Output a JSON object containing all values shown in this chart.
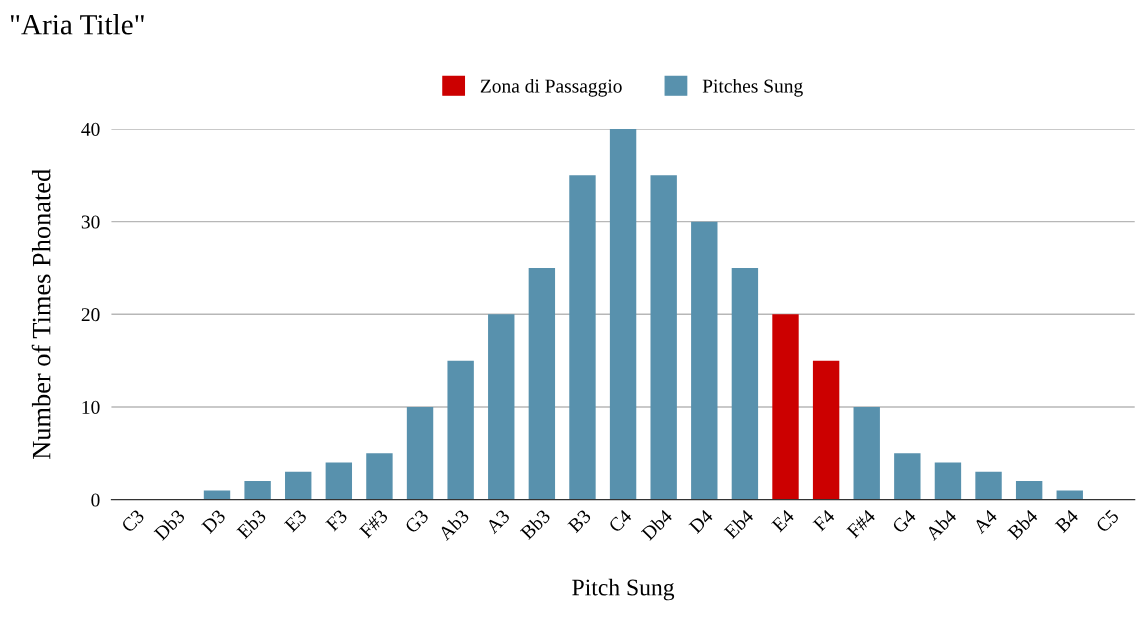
{
  "chart_data": {
    "type": "bar",
    "title": "\"Aria Title\"",
    "xlabel": "Pitch Sung",
    "ylabel": "Number of Times Phonated",
    "categories": [
      "C3",
      "Db3",
      "D3",
      "Eb3",
      "E3",
      "F3",
      "F#3",
      "G3",
      "Ab3",
      "A3",
      "Bb3",
      "B3",
      "C4",
      "Db4",
      "D4",
      "Eb4",
      "E4",
      "F4",
      "F#4",
      "G4",
      "Ab4",
      "A4",
      "Bb4",
      "B4",
      "C5"
    ],
    "stacked": true,
    "series": [
      {
        "name": "Zona di Passaggio",
        "color": "#cc0000",
        "values": [
          null,
          null,
          null,
          null,
          null,
          null,
          null,
          null,
          null,
          null,
          null,
          null,
          null,
          null,
          null,
          null,
          20,
          15,
          null,
          null,
          null,
          null,
          null,
          null,
          null
        ]
      },
      {
        "name": "Pitches Sung",
        "color": "#5891ad",
        "values": [
          0,
          0,
          1,
          2,
          3,
          4,
          5,
          10,
          15,
          20,
          25,
          35,
          40,
          35,
          30,
          25,
          null,
          null,
          10,
          5,
          4,
          3,
          2,
          1,
          0
        ]
      }
    ],
    "ylim": [
      0,
      40
    ],
    "yticks": [
      0,
      10,
      20,
      30,
      40
    ],
    "grid": "y",
    "legend": "top"
  }
}
